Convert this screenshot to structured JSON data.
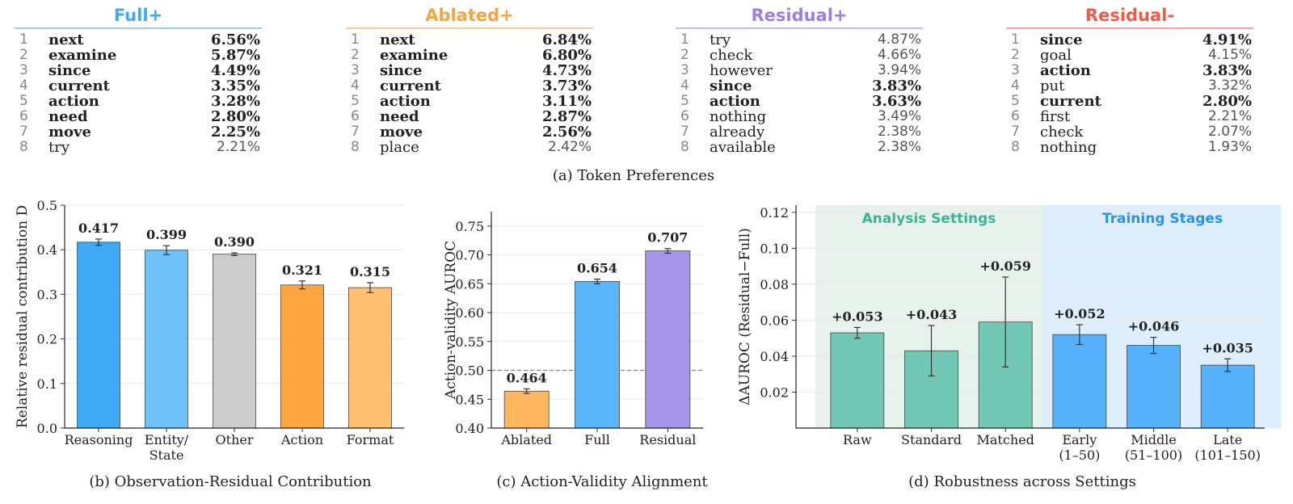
{
  "token_tables": [
    {
      "title": "Full+",
      "color": "#3fa9f5",
      "rows": [
        {
          "rank": "1",
          "token": "next",
          "value": "6.56%",
          "bold": true
        },
        {
          "rank": "2",
          "token": "examine",
          "value": "5.87%",
          "bold": true
        },
        {
          "rank": "3",
          "token": "since",
          "value": "4.49%",
          "bold": true
        },
        {
          "rank": "4",
          "token": "current",
          "value": "3.35%",
          "bold": true
        },
        {
          "rank": "5",
          "token": "action",
          "value": "3.28%",
          "bold": true
        },
        {
          "rank": "6",
          "token": "need",
          "value": "2.80%",
          "bold": true
        },
        {
          "rank": "7",
          "token": "move",
          "value": "2.25%",
          "bold": true
        },
        {
          "rank": "8",
          "token": "try",
          "value": "2.21%",
          "bold": false
        }
      ]
    },
    {
      "title": "Ablated+",
      "color": "#f5a442",
      "rows": [
        {
          "rank": "1",
          "token": "next",
          "value": "6.84%",
          "bold": true
        },
        {
          "rank": "2",
          "token": "examine",
          "value": "6.80%",
          "bold": true
        },
        {
          "rank": "3",
          "token": "since",
          "value": "4.73%",
          "bold": true
        },
        {
          "rank": "4",
          "token": "current",
          "value": "3.73%",
          "bold": true
        },
        {
          "rank": "5",
          "token": "action",
          "value": "3.11%",
          "bold": true
        },
        {
          "rank": "6",
          "token": "need",
          "value": "2.87%",
          "bold": true
        },
        {
          "rank": "7",
          "token": "move",
          "value": "2.56%",
          "bold": true
        },
        {
          "rank": "8",
          "token": "place",
          "value": "2.42%",
          "bold": false
        }
      ]
    },
    {
      "title": "Residual+",
      "color": "#9b7fe6",
      "rows": [
        {
          "rank": "1",
          "token": "try",
          "value": "4.87%",
          "bold": false
        },
        {
          "rank": "2",
          "token": "check",
          "value": "4.66%",
          "bold": false
        },
        {
          "rank": "3",
          "token": "however",
          "value": "3.94%",
          "bold": false
        },
        {
          "rank": "4",
          "token": "since",
          "value": "3.83%",
          "bold": true
        },
        {
          "rank": "5",
          "token": "action",
          "value": "3.63%",
          "bold": true
        },
        {
          "rank": "6",
          "token": "nothing",
          "value": "3.49%",
          "bold": false
        },
        {
          "rank": "7",
          "token": "already",
          "value": "2.38%",
          "bold": false
        },
        {
          "rank": "8",
          "token": "available",
          "value": "2.38%",
          "bold": false
        }
      ]
    },
    {
      "title": "Residual-",
      "color": "#f05a47",
      "rows": [
        {
          "rank": "1",
          "token": "since",
          "value": "4.91%",
          "bold": true
        },
        {
          "rank": "2",
          "token": "goal",
          "value": "4.15%",
          "bold": false
        },
        {
          "rank": "3",
          "token": "action",
          "value": "3.83%",
          "bold": true
        },
        {
          "rank": "4",
          "token": "put",
          "value": "3.32%",
          "bold": false
        },
        {
          "rank": "5",
          "token": "current",
          "value": "2.80%",
          "bold": true
        },
        {
          "rank": "6",
          "token": "first",
          "value": "2.21%",
          "bold": false
        },
        {
          "rank": "7",
          "token": "check",
          "value": "2.07%",
          "bold": false
        },
        {
          "rank": "8",
          "token": "nothing",
          "value": "1.93%",
          "bold": false
        }
      ]
    }
  ],
  "captions": {
    "a": "(a) Token Preferences",
    "b": "(b) Observation-Residual Contribution",
    "c": "(c) Action-Validity Alignment",
    "d": "(d) Robustness across Settings"
  },
  "chart_data": [
    {
      "type": "bar",
      "categories": [
        "Reasoning",
        "Entity/\nState",
        "Other",
        "Action",
        "Format"
      ],
      "values": [
        0.417,
        0.399,
        0.39,
        0.321,
        0.315
      ],
      "errors": [
        0.007,
        0.01,
        0.003,
        0.009,
        0.011
      ],
      "value_labels": [
        "0.417",
        "0.399",
        "0.390",
        "0.321",
        "0.315"
      ],
      "colors": [
        "#3fa9f5",
        "#6ec0f7",
        "#cccccc",
        "#ffa53f",
        "#ffbf70"
      ],
      "ylabel": "Relative residual contribution D",
      "ylim": [
        0,
        0.5
      ],
      "yticks": [
        "0.0",
        "0.1",
        "0.2",
        "0.3",
        "0.4",
        "0.5"
      ],
      "grid": true
    },
    {
      "type": "bar",
      "categories": [
        "Ablated",
        "Full",
        "Residual"
      ],
      "values": [
        0.464,
        0.654,
        0.707
      ],
      "errors": [
        0.004,
        0.004,
        0.004
      ],
      "value_labels": [
        "0.464",
        "0.654",
        "0.707"
      ],
      "colors": [
        "#ffb661",
        "#5ab4fa",
        "#a795ec"
      ],
      "ylabel": "Action-validity AUROC",
      "ylim": [
        0.4,
        0.775
      ],
      "yticks": [
        "0.40",
        "0.45",
        "0.50",
        "0.55",
        "0.60",
        "0.65",
        "0.70",
        "0.75"
      ],
      "reference_line": 0.5,
      "grid": true
    },
    {
      "type": "bar",
      "categories": [
        "Raw",
        "Standard",
        "Matched",
        "Early\n(1–50)",
        "Middle\n(51–100)",
        "Late\n(101–150)"
      ],
      "values": [
        0.053,
        0.043,
        0.059,
        0.052,
        0.046,
        0.035
      ],
      "errors": [
        0.003,
        0.014,
        0.025,
        0.0055,
        0.0045,
        0.0035
      ],
      "value_labels": [
        "+0.053",
        "+0.043",
        "+0.059",
        "+0.052",
        "+0.046",
        "+0.035"
      ],
      "colors": [
        "#72c7b5",
        "#72c7b5",
        "#72c7b5",
        "#55b1fa",
        "#55b1fa",
        "#55b1fa"
      ],
      "ylabel": "ΔAUROC (Residual−Full)",
      "ylim": [
        0.0,
        0.124
      ],
      "yticks": [
        "0.02",
        "0.04",
        "0.06",
        "0.08",
        "0.10",
        "0.12"
      ],
      "regions": [
        {
          "label": "Analysis Settings",
          "color": "#3bb394",
          "fill": "#e7f2ec"
        },
        {
          "label": "Training Stages",
          "color": "#2196f3",
          "fill": "#dfeefc"
        }
      ],
      "grid": true
    }
  ]
}
